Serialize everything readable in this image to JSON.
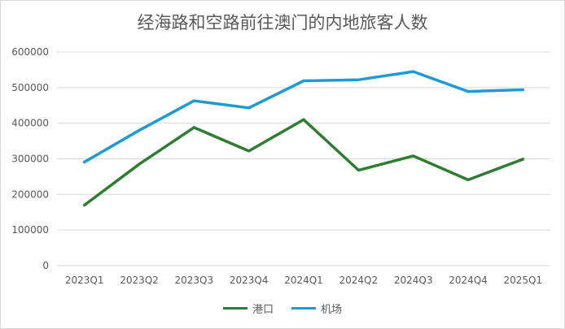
{
  "chart_data": {
    "type": "line",
    "title": "经海路和空路前往澳门的内地旅客人数",
    "categories": [
      "2023Q1",
      "2023Q2",
      "2023Q3",
      "2023Q4",
      "2024Q1",
      "2024Q2",
      "2024Q3",
      "2024Q4",
      "2025Q1"
    ],
    "y_ticks": [
      "0",
      "100000",
      "200000",
      "300000",
      "400000",
      "500000",
      "600000"
    ],
    "ylim": [
      0,
      600000
    ],
    "grid": true,
    "legend_position": "bottom",
    "series": [
      {
        "name": "港口",
        "color": "#2e7d32",
        "values": [
          170000,
          285000,
          388000,
          322000,
          410000,
          268000,
          308000,
          241000,
          299000
        ]
      },
      {
        "name": "机场",
        "color": "#1e9bd7",
        "values": [
          291000,
          380000,
          463000,
          443000,
          519000,
          522000,
          545000,
          489000,
          494000
        ]
      }
    ]
  }
}
